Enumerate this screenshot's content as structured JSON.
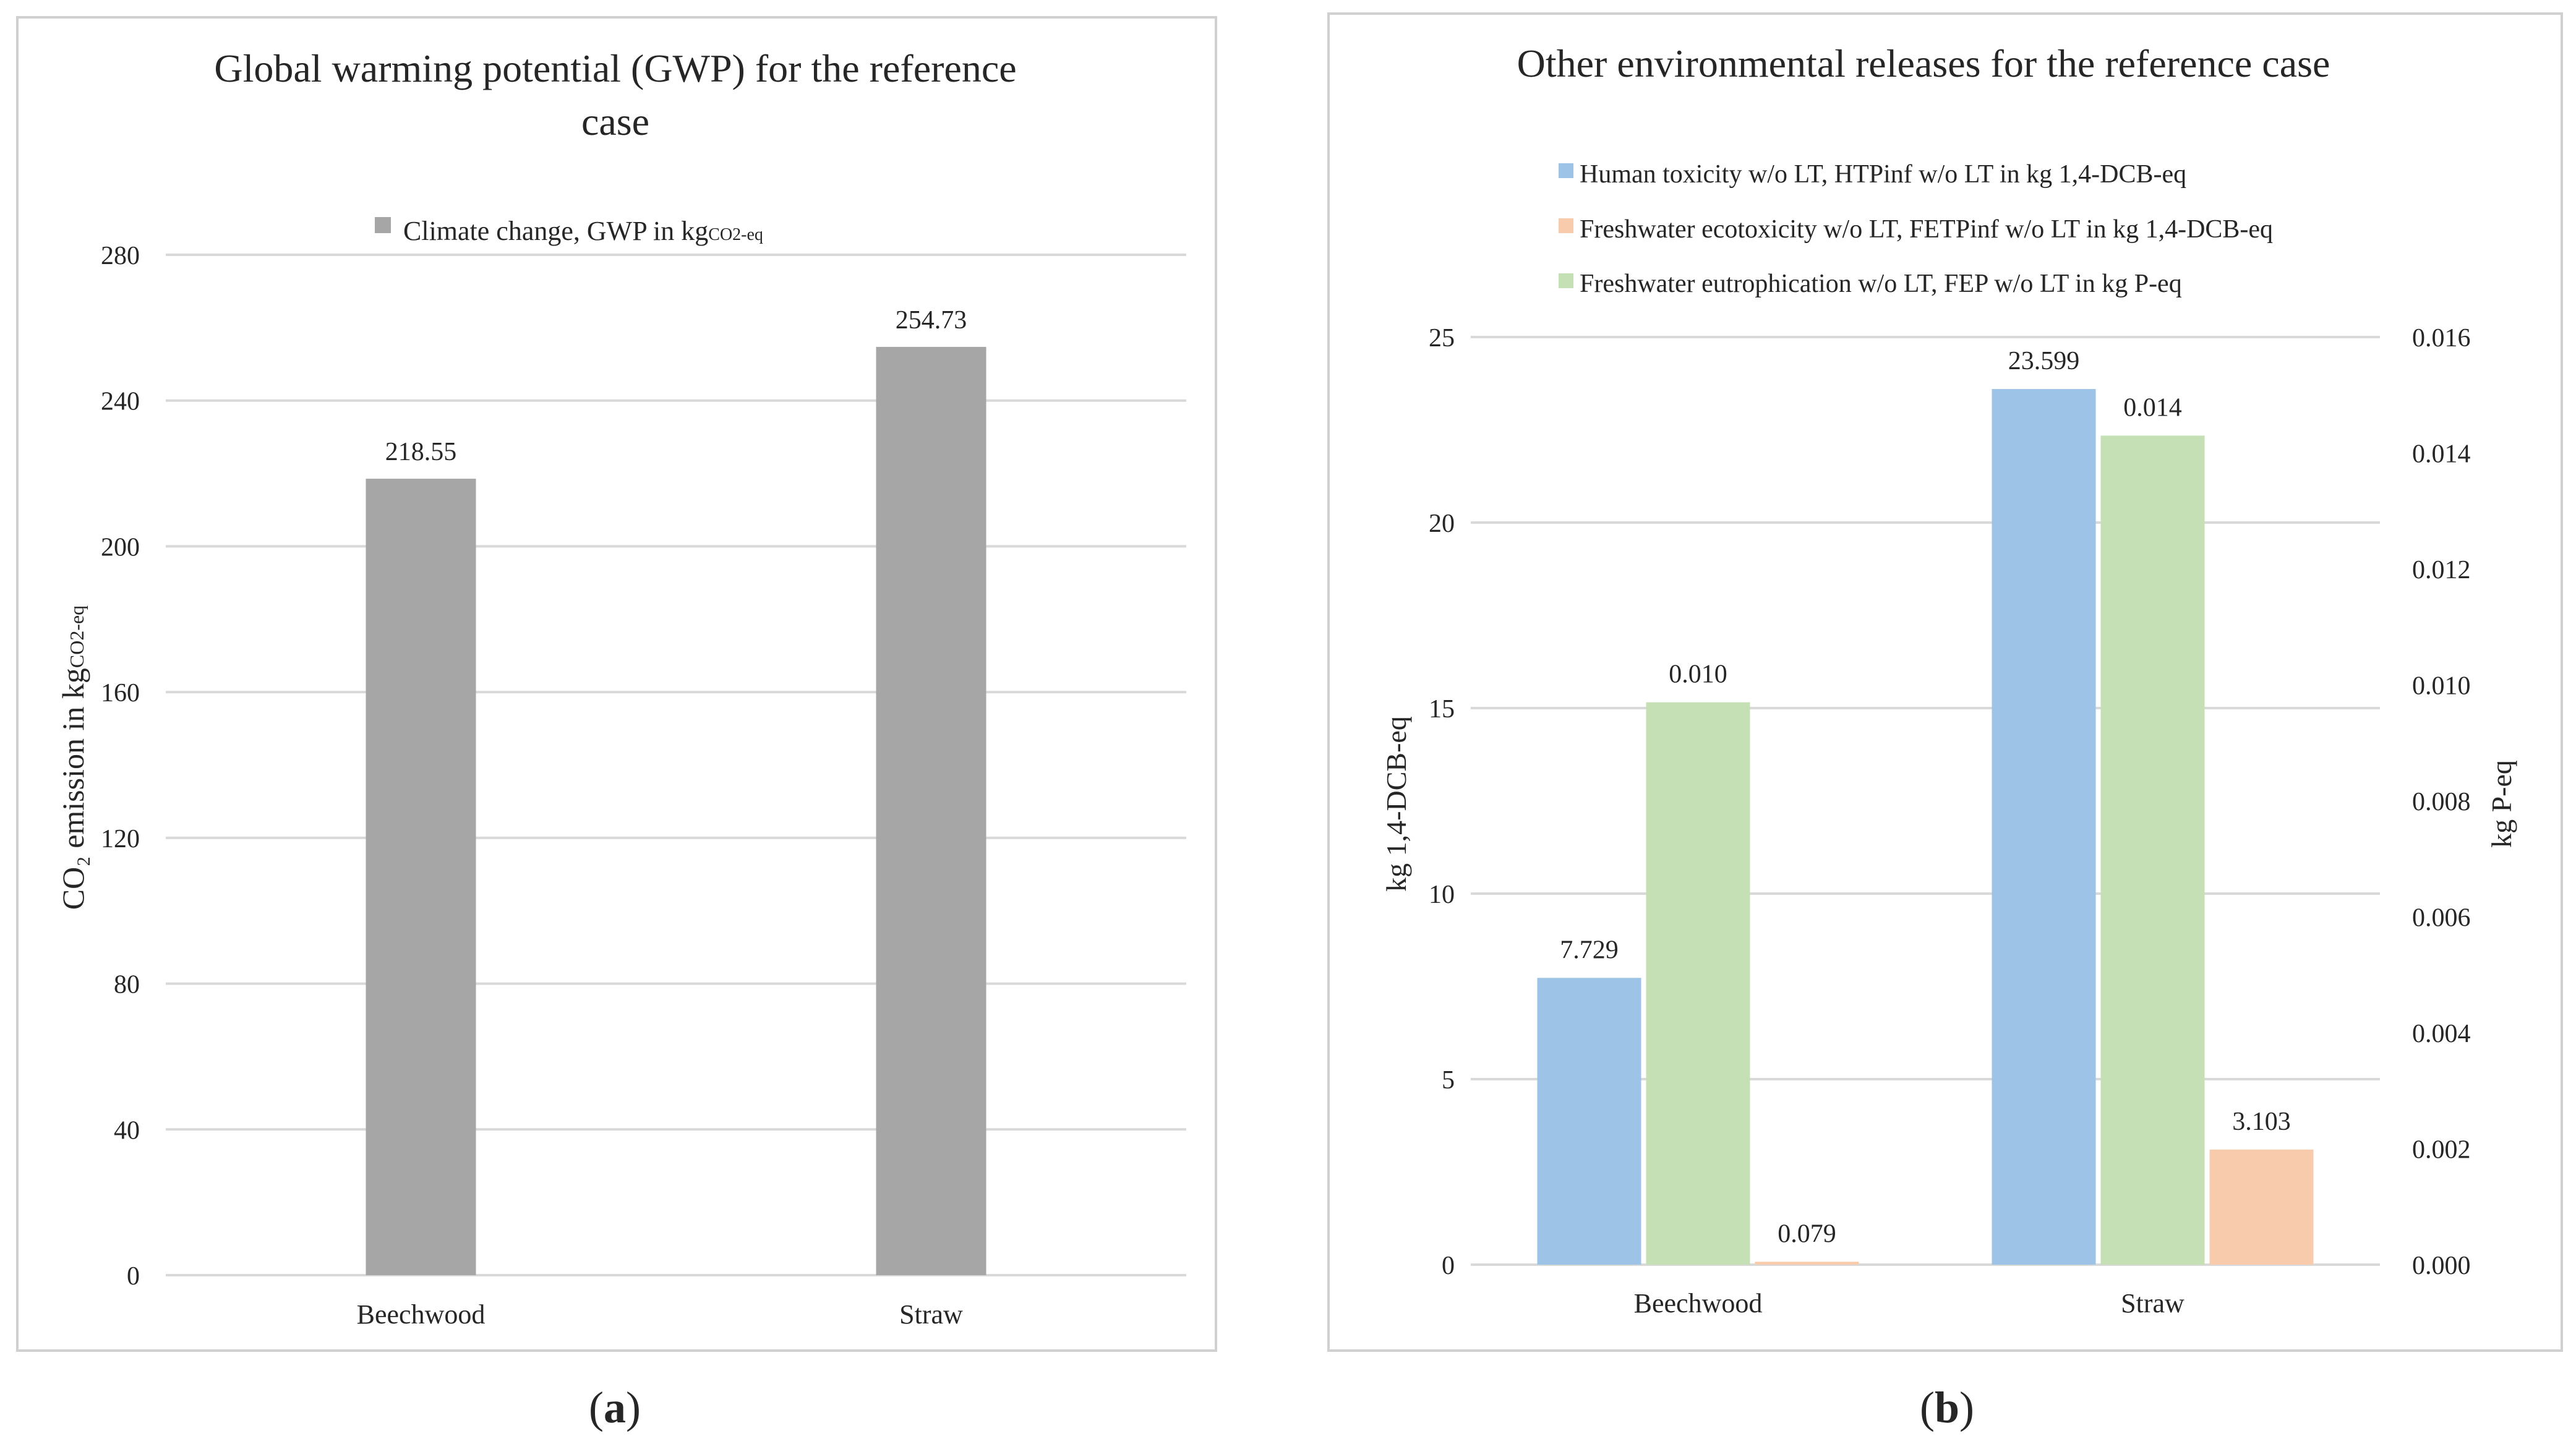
{
  "colors": {
    "gwp_bar": "#a6a6a6",
    "human_toxicity": "#9dc3e6",
    "freshwater_ecotoxicity": "#f8cbad",
    "freshwater_eutrophication": "#c5e0b4",
    "grid": "#d9d9d9",
    "frame": "#d0d0d0"
  },
  "panel_a": {
    "caption_letter": "a",
    "caption_open": "(",
    "caption_close": ")"
  },
  "panel_b": {
    "caption_letter": "b",
    "caption_open": "(",
    "caption_close": ")"
  },
  "chart_data": [
    {
      "type": "bar",
      "title_line1": "Global warming potential (GWP) for the reference",
      "title_line2": "case",
      "ylabel_main": "CO₂ emission in kg",
      "ylabel_sub": "CO2-eq",
      "xlabel": "",
      "ylim": [
        0,
        280
      ],
      "yticks": [
        "0",
        "40",
        "80",
        "120",
        "160",
        "200",
        "240",
        "280"
      ],
      "categories": [
        "Beechwood",
        "Straw"
      ],
      "series": [
        {
          "name": "Climate change, GWP in kg",
          "name_sub": "CO2-eq",
          "values": [
            218.55,
            254.73
          ],
          "labels": [
            "218.55",
            "254.73"
          ]
        }
      ],
      "legend_position": "top",
      "grid": true
    },
    {
      "type": "bar",
      "title": "Other environmental releases for the reference case",
      "ylabel_left": "kg 1,4-DCB-eq",
      "ylabel_right": "kg P-eq",
      "xlabel": "",
      "ylim_left": [
        0,
        25
      ],
      "ylim_right": [
        0,
        0.016
      ],
      "yticks_left": [
        "0",
        "5",
        "10",
        "15",
        "20",
        "25"
      ],
      "yticks_right": [
        "0.000",
        "0.002",
        "0.004",
        "0.006",
        "0.008",
        "0.010",
        "0.012",
        "0.014",
        "0.016"
      ],
      "categories": [
        "Beechwood",
        "Straw"
      ],
      "series": [
        {
          "name": "Human toxicity w/o LT, HTPinf w/o LT in kg 1,4-DCB-eq",
          "axis": "left",
          "values": [
            7.729,
            23.599
          ],
          "labels": [
            "7.729",
            "23.599"
          ]
        },
        {
          "name": "Freshwater ecotoxicity w/o LT, FETPinf w/o LT in kg 1,4-DCB-eq",
          "axis": "left",
          "values": [
            0.079,
            3.103
          ],
          "labels": [
            "0.079",
            "3.103"
          ]
        },
        {
          "name": "Freshwater eutrophication w/o LT, FEP w/o LT in kg P-eq",
          "axis": "right",
          "values": [
            0.0097,
            0.0143
          ],
          "labels": [
            "0.010",
            "0.014"
          ]
        }
      ],
      "bar_order": [
        0,
        2,
        1
      ],
      "legend_position": "top",
      "grid": true
    }
  ]
}
